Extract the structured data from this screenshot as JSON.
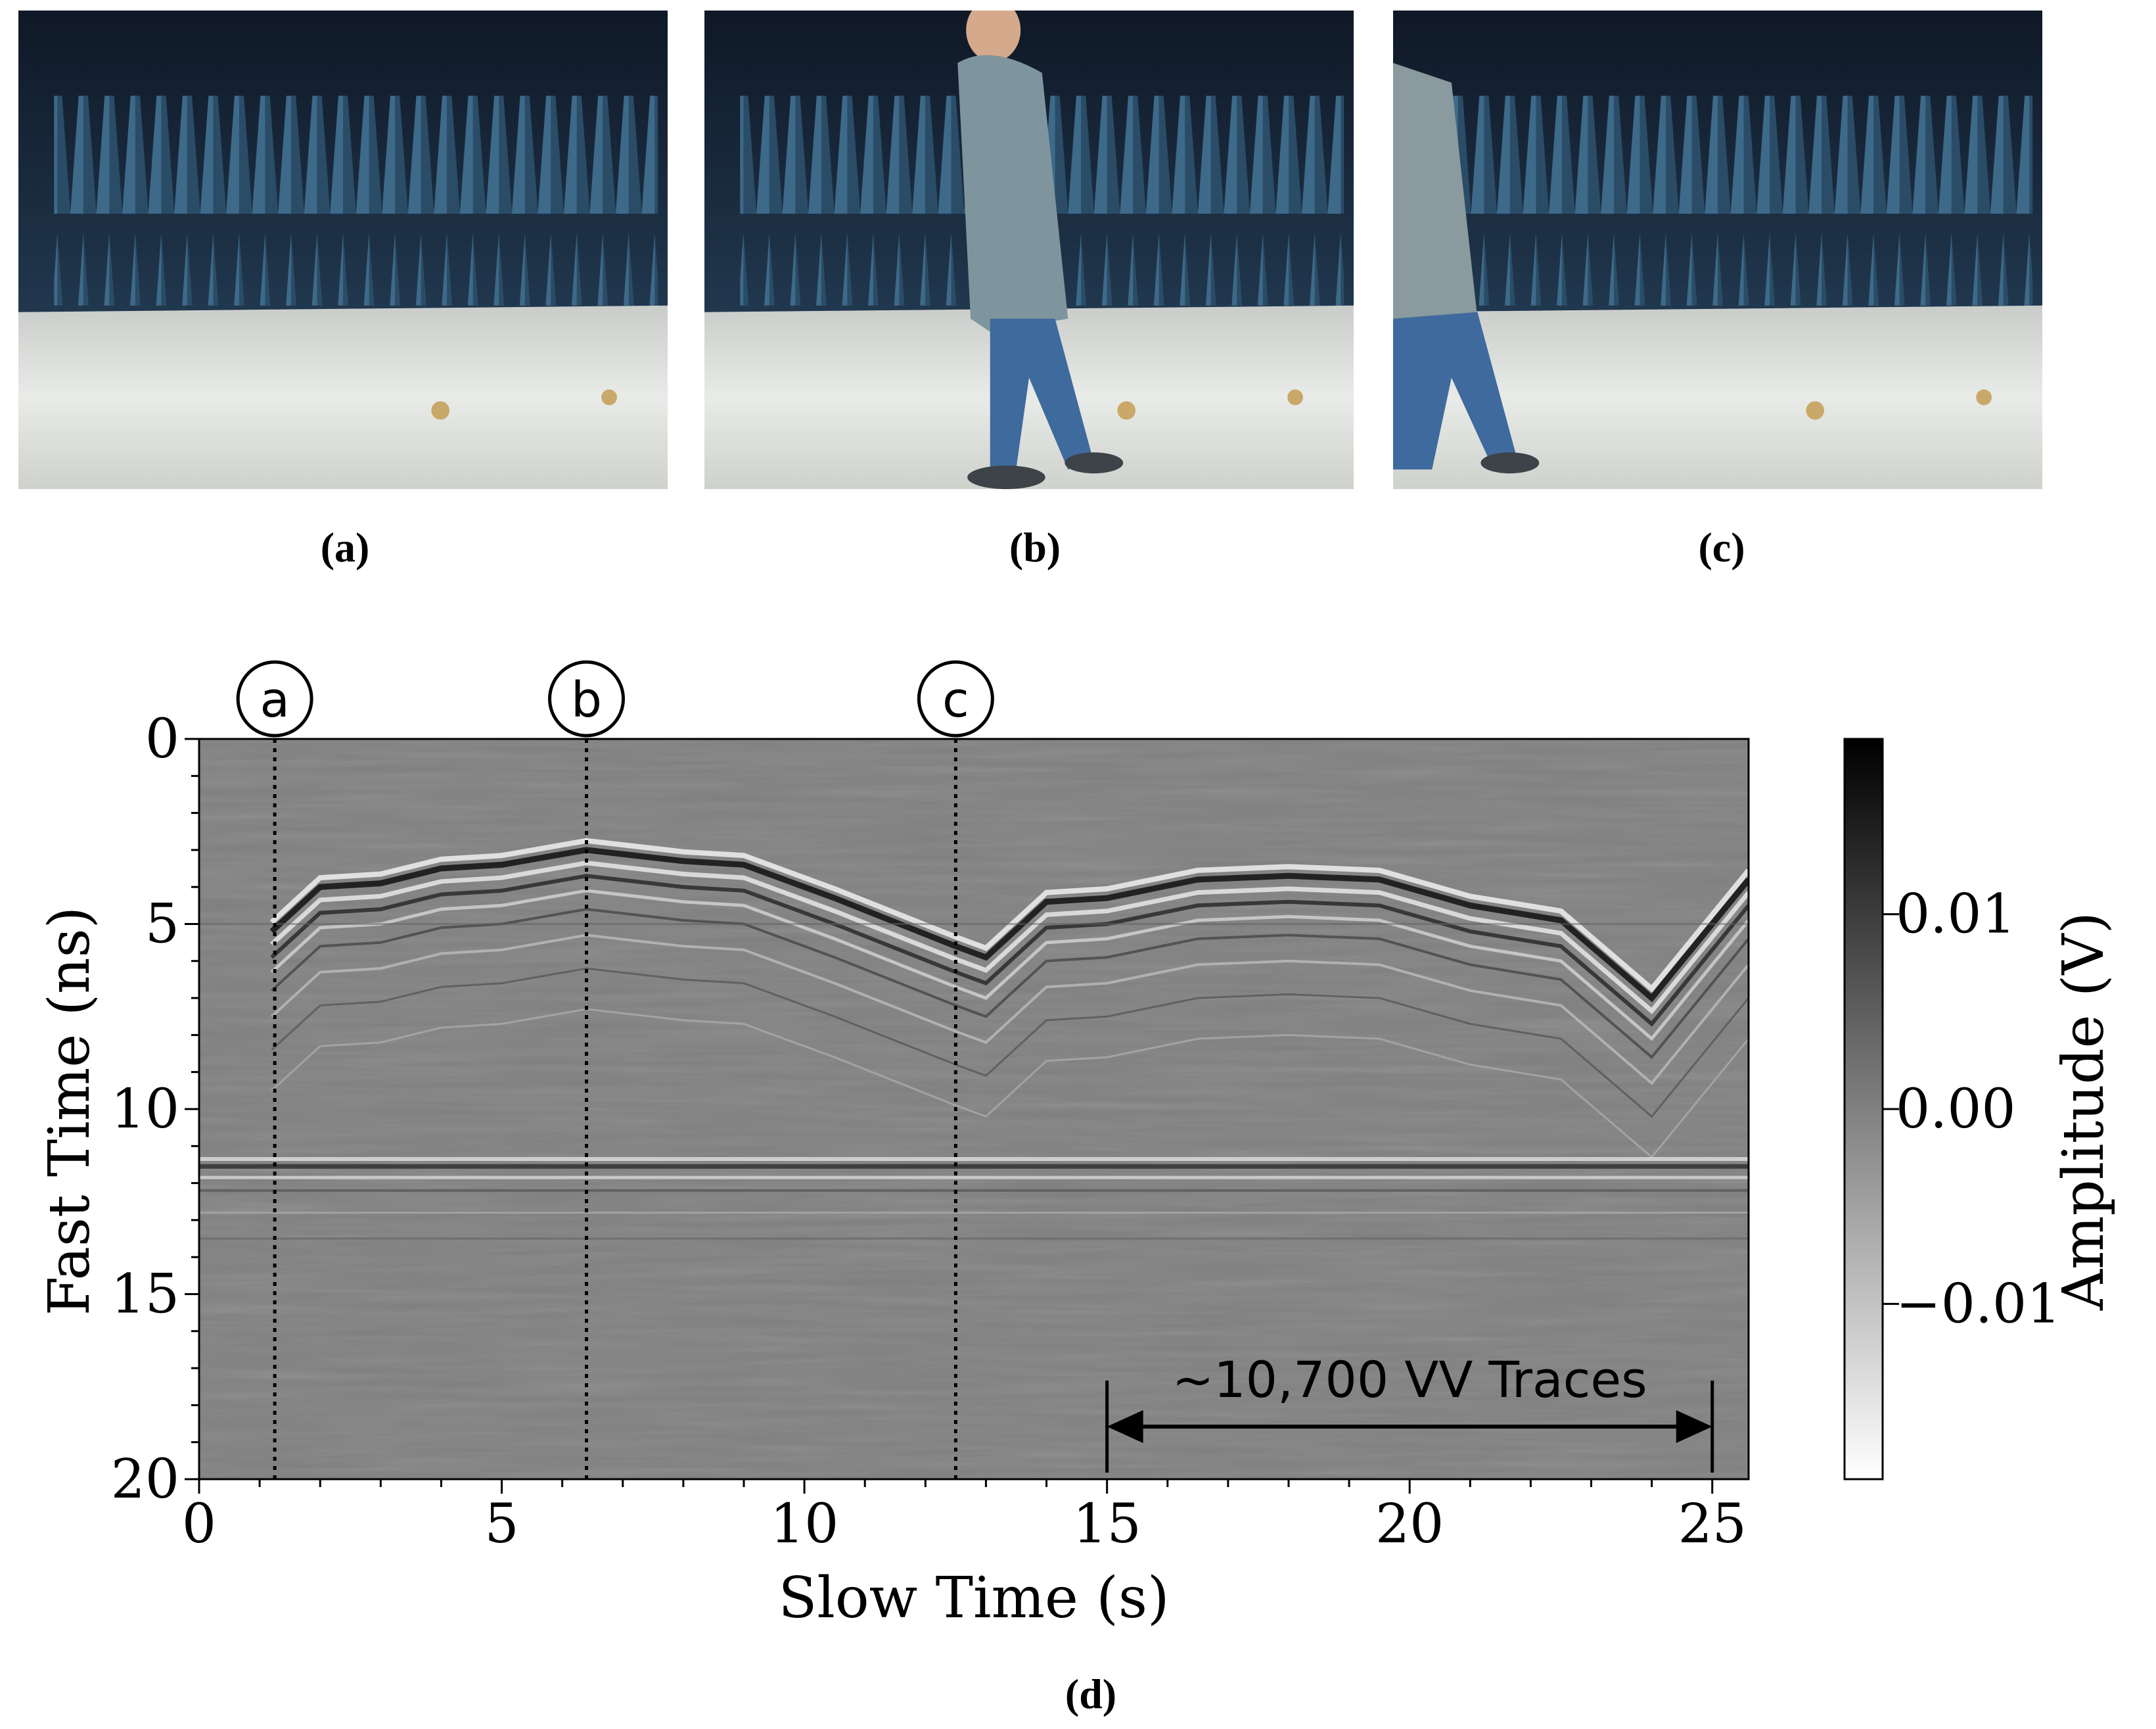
{
  "panels": [
    {
      "label": "a",
      "caption": "(a)"
    },
    {
      "label": "b",
      "caption": "(b)"
    },
    {
      "label": "c",
      "caption": "(c)"
    }
  ],
  "caption_d": "(d)",
  "colors": {
    "absorber": "#3e6a8a",
    "floor": "#d9dbd8",
    "hoodie": "#7f959d",
    "jeans": "#3f6a9d"
  },
  "icons": [
    "anechoic-chamber-photo",
    "walking-person-figure"
  ],
  "chart_data": {
    "type": "heatmap",
    "title": "",
    "xlabel": "Slow Time (s)",
    "ylabel": "Fast Time (ns)",
    "xlim": [
      0,
      25.6
    ],
    "ylim": [
      20,
      0
    ],
    "xticks": [
      0,
      5,
      10,
      15,
      20,
      25
    ],
    "yticks": [
      0,
      5,
      10,
      15,
      20
    ],
    "colorbar": {
      "label": "Amplitude (V)",
      "ticks": [
        "0.01",
        "0.00",
        "−0.01"
      ],
      "range": [
        -0.019,
        0.019
      ]
    },
    "markers": [
      {
        "label": "a",
        "x": 1.25
      },
      {
        "label": "b",
        "x": 6.4
      },
      {
        "label": "c",
        "x": 12.5
      }
    ],
    "annotation": {
      "text": "~10,700 VV Traces",
      "x_start": 15,
      "x_end": 25
    },
    "target_reflection_ns": [
      [
        1.2,
        5.2
      ],
      [
        2.0,
        4.0
      ],
      [
        3.0,
        3.9
      ],
      [
        4.0,
        3.5
      ],
      [
        5.0,
        3.4
      ],
      [
        6.4,
        3.0
      ],
      [
        8.0,
        3.3
      ],
      [
        9.0,
        3.4
      ],
      [
        10.5,
        4.3
      ],
      [
        12.5,
        5.6
      ],
      [
        13.0,
        5.9
      ],
      [
        14.0,
        4.4
      ],
      [
        15.0,
        4.3
      ],
      [
        16.5,
        3.8
      ],
      [
        18.0,
        3.7
      ],
      [
        19.5,
        3.8
      ],
      [
        21.0,
        4.5
      ],
      [
        22.5,
        4.9
      ],
      [
        24.0,
        7.0
      ],
      [
        25.0,
        5.0
      ],
      [
        25.6,
        3.8
      ]
    ],
    "static_reflection_ns": 11.5
  }
}
